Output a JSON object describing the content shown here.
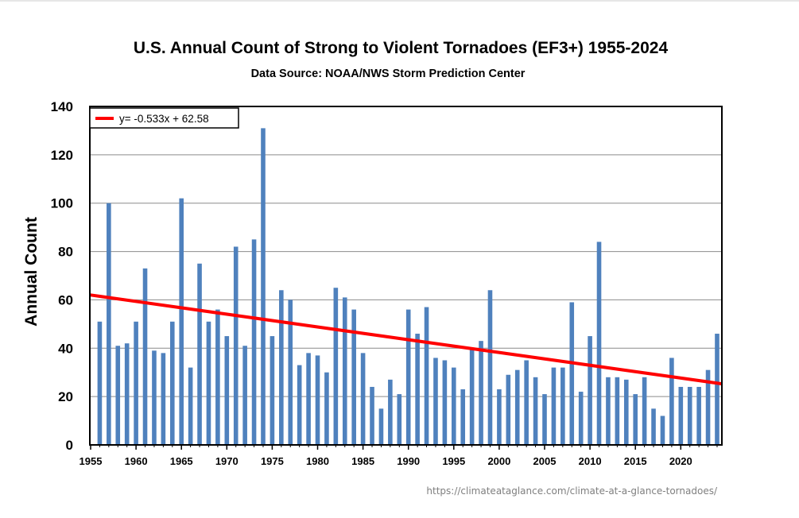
{
  "chart_data": {
    "type": "bar",
    "title": "U.S. Annual Count of Strong to Violent Tornadoes (EF3+) 1955-2024",
    "subtitle": "Data Source: NOAA/NWS Storm Prediction Center",
    "ylabel": "Annual Count",
    "xlabel": "",
    "ylim": [
      0,
      140
    ],
    "yticks": [
      0,
      20,
      40,
      60,
      80,
      100,
      120,
      140
    ],
    "xticks": [
      1955,
      1960,
      1965,
      1970,
      1975,
      1980,
      1985,
      1990,
      1995,
      2000,
      2005,
      2010,
      2015,
      2020
    ],
    "xlim": [
      1955,
      2024
    ],
    "grid": true,
    "legend_position": "top-left",
    "bar_color": "#4f81bd",
    "trend_color": "#ff0000",
    "years": [
      1955,
      1956,
      1957,
      1958,
      1959,
      1960,
      1961,
      1962,
      1963,
      1964,
      1965,
      1966,
      1967,
      1968,
      1969,
      1970,
      1971,
      1972,
      1973,
      1974,
      1975,
      1976,
      1977,
      1978,
      1979,
      1980,
      1981,
      1982,
      1983,
      1984,
      1985,
      1986,
      1987,
      1988,
      1989,
      1990,
      1991,
      1992,
      1993,
      1994,
      1995,
      1996,
      1997,
      1998,
      1999,
      2000,
      2001,
      2002,
      2003,
      2004,
      2005,
      2006,
      2007,
      2008,
      2009,
      2010,
      2011,
      2012,
      2013,
      2014,
      2015,
      2016,
      2017,
      2018,
      2019,
      2020,
      2021,
      2022,
      2023,
      2024
    ],
    "values": [
      0,
      51,
      100,
      41,
      42,
      51,
      73,
      39,
      38,
      51,
      102,
      32,
      75,
      51,
      56,
      45,
      82,
      41,
      85,
      131,
      45,
      64,
      60,
      33,
      38,
      37,
      30,
      65,
      61,
      56,
      38,
      24,
      15,
      27,
      21,
      56,
      46,
      57,
      36,
      35,
      32,
      23,
      40,
      43,
      64,
      23,
      29,
      31,
      35,
      28,
      21,
      32,
      32,
      59,
      22,
      45,
      84,
      28,
      28,
      27,
      21,
      28,
      15,
      12,
      36,
      24,
      24,
      24,
      31,
      46
    ],
    "trendline": {
      "label": "y= -0.533x + 62.58",
      "slope": -0.533,
      "intercept": 62.58
    },
    "source_url": "https://climateataglance.com/climate-at-a-glance-tornadoes/"
  }
}
